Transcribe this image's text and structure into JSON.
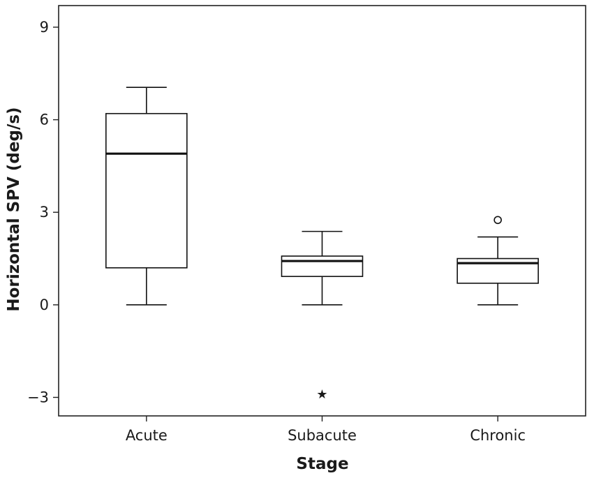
{
  "chart_data": {
    "type": "boxplot",
    "title": "",
    "xlabel": "Stage",
    "ylabel": "Horizontal SPV (deg/s)",
    "ylim": [
      -3.6,
      9.7
    ],
    "yticks": [
      -3,
      0,
      3,
      6,
      9
    ],
    "ytick_labels": [
      "−3",
      "0",
      "3",
      "6",
      "9"
    ],
    "grid": false,
    "categories": [
      "Acute",
      "Subacute",
      "Chronic"
    ],
    "boxes": [
      {
        "category": "Acute",
        "whisker_low": 0,
        "q1": 1.2,
        "median": 4.9,
        "q3": 6.2,
        "whisker_high": 7.05,
        "outliers": [],
        "extremes": []
      },
      {
        "category": "Subacute",
        "whisker_low": 0,
        "q1": 0.92,
        "median": 1.42,
        "q3": 1.58,
        "whisker_high": 2.38,
        "outliers": [],
        "extremes": [
          -2.85
        ]
      },
      {
        "category": "Chronic",
        "whisker_low": 0,
        "q1": 0.7,
        "median": 1.35,
        "q3": 1.5,
        "whisker_high": 2.2,
        "outliers": [
          2.75
        ],
        "extremes": []
      }
    ]
  }
}
